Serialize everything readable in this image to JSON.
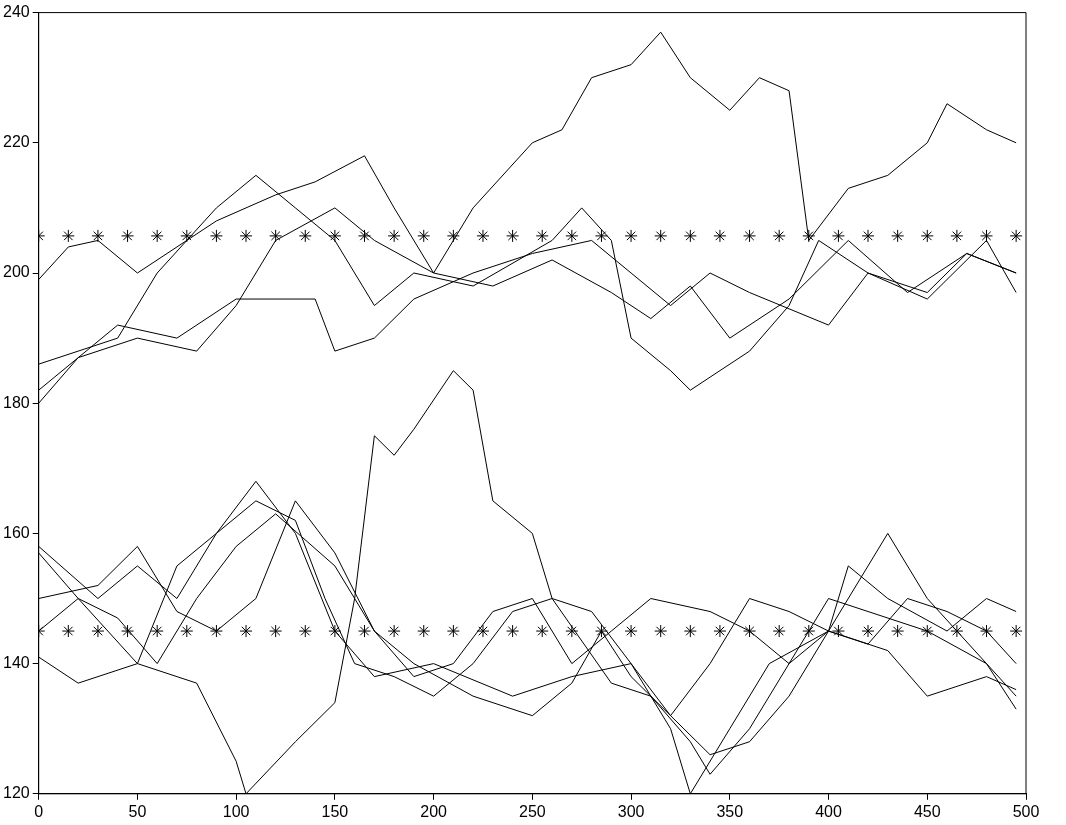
{
  "chart_data": {
    "type": "line",
    "xlim": [
      0,
      500
    ],
    "ylim": [
      120,
      240
    ],
    "xticks": [
      0,
      50,
      100,
      150,
      200,
      250,
      300,
      350,
      400,
      450,
      500
    ],
    "yticks": [
      120,
      140,
      160,
      180,
      200,
      220,
      240
    ],
    "grid": false,
    "legend": false,
    "marker": "none",
    "line_style": "solid",
    "series": [
      {
        "color": "#000000",
        "x": [
          0,
          15,
          30,
          50,
          70,
          90,
          120,
          140,
          165,
          180,
          200,
          220,
          250,
          265,
          280,
          300,
          315,
          330,
          350,
          365,
          380,
          390,
          410,
          430,
          450,
          460,
          480,
          495
        ],
        "values": [
          199,
          204,
          205,
          200,
          204,
          208,
          212,
          214,
          218,
          210,
          200,
          210,
          220,
          222,
          230,
          232,
          237,
          230,
          225,
          230,
          228,
          205,
          213,
          215,
          220,
          226,
          222,
          220
        ]
      },
      {
        "color": "#000000",
        "x": [
          0,
          20,
          40,
          60,
          90,
          110,
          130,
          150,
          170,
          190,
          220,
          260,
          275,
          290,
          300,
          320,
          330,
          360,
          380,
          395,
          420,
          450,
          470,
          495
        ],
        "values": [
          186,
          188,
          190,
          200,
          210,
          215,
          210,
          205,
          195,
          200,
          198,
          205,
          210,
          205,
          190,
          185,
          182,
          188,
          195,
          205,
          200,
          197,
          203,
          200
        ]
      },
      {
        "color": "#000000",
        "x": [
          0,
          20,
          40,
          70,
          100,
          140,
          150,
          170,
          190,
          220,
          250,
          280,
          300,
          320,
          340,
          360,
          400,
          420,
          450,
          480,
          495
        ],
        "values": [
          182,
          187,
          192,
          190,
          196,
          196,
          188,
          190,
          196,
          200,
          203,
          205,
          200,
          195,
          200,
          197,
          192,
          200,
          196,
          205,
          197
        ]
      },
      {
        "color": "#000000",
        "x": [
          0,
          20,
          50,
          80,
          100,
          120,
          150,
          170,
          200,
          230,
          260,
          290,
          310,
          330,
          350,
          380,
          410,
          440,
          470,
          495
        ],
        "values": [
          180,
          187,
          190,
          188,
          195,
          205,
          210,
          205,
          200,
          198,
          202,
          197,
          193,
          198,
          190,
          196,
          205,
          197,
          203,
          200
        ]
      },
      {
        "color": "#000000",
        "x": [
          0,
          20,
          50,
          80,
          100,
          105,
          130,
          150,
          160,
          170,
          180,
          190,
          210,
          220,
          230,
          250,
          260,
          290,
          310,
          330,
          340,
          360,
          380,
          400,
          420,
          450,
          480,
          495
        ],
        "values": [
          157,
          150,
          140,
          137,
          125,
          120,
          128,
          134,
          150,
          175,
          172,
          176,
          185,
          182,
          165,
          160,
          150,
          137,
          135,
          128,
          123,
          130,
          140,
          150,
          148,
          145,
          140,
          133
        ]
      },
      {
        "color": "#000000",
        "x": [
          0,
          20,
          50,
          70,
          90,
          110,
          130,
          150,
          170,
          200,
          240,
          270,
          300,
          320,
          330,
          350,
          370,
          400,
          420,
          430,
          450,
          480,
          495
        ],
        "values": [
          141,
          137,
          140,
          155,
          160,
          168,
          160,
          145,
          138,
          140,
          135,
          138,
          140,
          130,
          120,
          130,
          140,
          145,
          155,
          160,
          150,
          140,
          135
        ]
      },
      {
        "color": "#000000",
        "x": [
          0,
          30,
          50,
          70,
          90,
          110,
          130,
          145,
          160,
          180,
          200,
          220,
          240,
          260,
          280,
          300,
          320,
          340,
          360,
          380,
          400,
          410,
          430,
          460,
          480,
          495
        ],
        "values": [
          158,
          150,
          155,
          150,
          160,
          165,
          162,
          150,
          140,
          138,
          135,
          140,
          148,
          150,
          148,
          140,
          132,
          126,
          128,
          135,
          145,
          155,
          150,
          145,
          150,
          148
        ]
      },
      {
        "color": "#000000",
        "x": [
          0,
          20,
          40,
          60,
          80,
          100,
          120,
          150,
          170,
          190,
          210,
          230,
          250,
          270,
          290,
          310,
          340,
          360,
          380,
          400,
          430,
          450,
          480,
          495
        ],
        "values": [
          145,
          150,
          147,
          140,
          150,
          158,
          163,
          155,
          145,
          138,
          140,
          148,
          150,
          140,
          145,
          150,
          148,
          145,
          140,
          145,
          142,
          135,
          138,
          136
        ]
      },
      {
        "color": "#000000",
        "x": [
          0,
          30,
          50,
          70,
          90,
          110,
          130,
          150,
          170,
          190,
          220,
          250,
          270,
          285,
          300,
          320,
          340,
          360,
          380,
          400,
          420,
          440,
          460,
          480,
          495
        ],
        "values": [
          150,
          152,
          158,
          148,
          145,
          150,
          165,
          157,
          145,
          140,
          135,
          132,
          137,
          145,
          138,
          132,
          140,
          150,
          148,
          145,
          143,
          150,
          148,
          145,
          140
        ]
      },
      {
        "type": "scatter",
        "marker": "cross",
        "color": "#000000",
        "x": [
          0,
          15,
          30,
          45,
          60,
          75,
          90,
          105,
          120,
          135,
          150,
          165,
          180,
          195,
          210,
          225,
          240,
          255,
          270,
          285,
          300,
          315,
          330,
          345,
          360,
          375,
          390,
          405,
          420,
          435,
          450,
          465,
          480,
          495
        ],
        "values": [
          205.7,
          205.7,
          205.7,
          205.7,
          205.7,
          205.7,
          205.7,
          205.7,
          205.7,
          205.7,
          205.7,
          205.7,
          205.7,
          205.7,
          205.7,
          205.7,
          205.7,
          205.7,
          205.7,
          205.7,
          205.7,
          205.7,
          205.7,
          205.7,
          205.7,
          205.7,
          205.7,
          205.7,
          205.7,
          205.7,
          205.7,
          205.7,
          205.7,
          205.7
        ]
      },
      {
        "type": "scatter",
        "marker": "cross",
        "color": "#000000",
        "x": [
          0,
          15,
          30,
          45,
          60,
          75,
          90,
          105,
          120,
          135,
          150,
          165,
          180,
          195,
          210,
          225,
          240,
          255,
          270,
          285,
          300,
          315,
          330,
          345,
          360,
          375,
          390,
          405,
          420,
          435,
          450,
          465,
          480,
          495
        ],
        "values": [
          145,
          145,
          145,
          145,
          145,
          145,
          145,
          145,
          145,
          145,
          145,
          145,
          145,
          145,
          145,
          145,
          145,
          145,
          145,
          145,
          145,
          145,
          145,
          145,
          145,
          145,
          145,
          145,
          145,
          145,
          145,
          145,
          145,
          145
        ]
      }
    ]
  }
}
